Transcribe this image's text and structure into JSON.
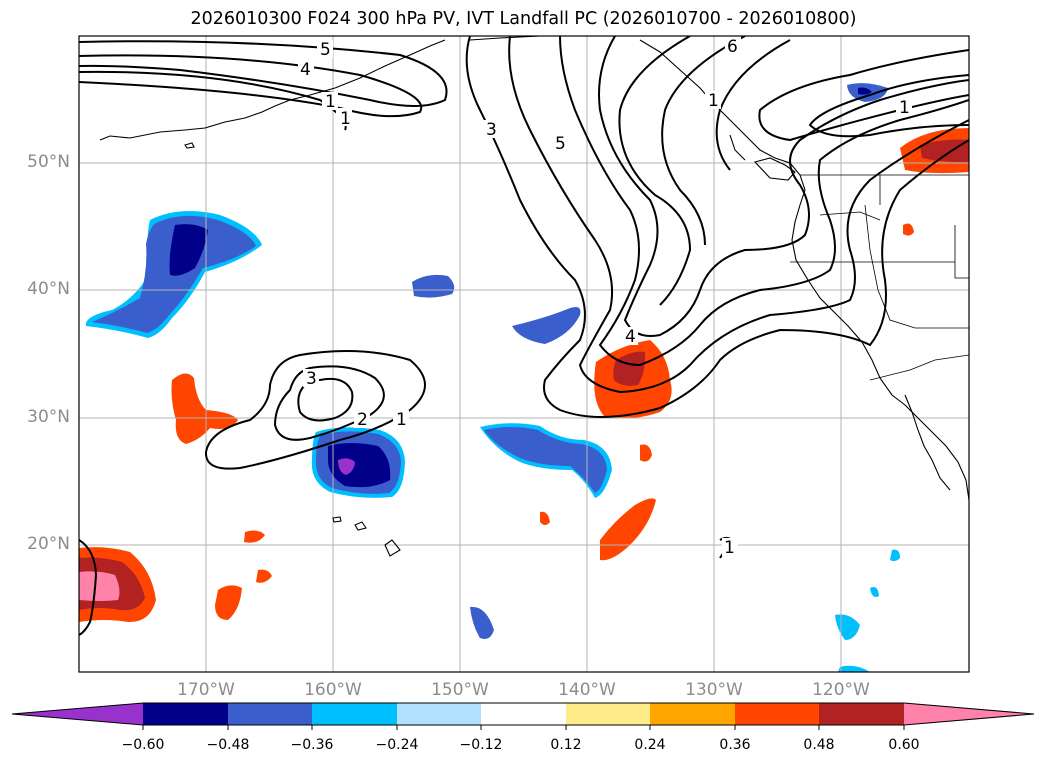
{
  "title": "2026010300 F024 300 hPa PV, IVT Landfall PC (2026010700 - 2026010800)",
  "lat_labels": [
    "50°N",
    "40°N",
    "30°N",
    "20°N"
  ],
  "lon_labels": [
    "170°W",
    "160°W",
    "150°W",
    "140°W",
    "130°W",
    "120°W"
  ],
  "contour_labels": [
    "5",
    "4",
    "1",
    "1",
    "3",
    "5",
    "6",
    "1",
    "3",
    "2",
    "1",
    "4",
    "1",
    "1"
  ],
  "colorbar": {
    "ticks": [
      "−0.60",
      "−0.48",
      "−0.36",
      "−0.24",
      "−0.12",
      "0.12",
      "0.24",
      "0.36",
      "0.48",
      "0.60"
    ],
    "colors": [
      "#9932cc",
      "#00008b",
      "#3a5fcd",
      "#00bfff",
      "#b0e2ff",
      "#ffffff",
      "#ffec8b",
      "#ffa500",
      "#ff4500",
      "#b22222",
      "#ff82ab"
    ]
  }
}
